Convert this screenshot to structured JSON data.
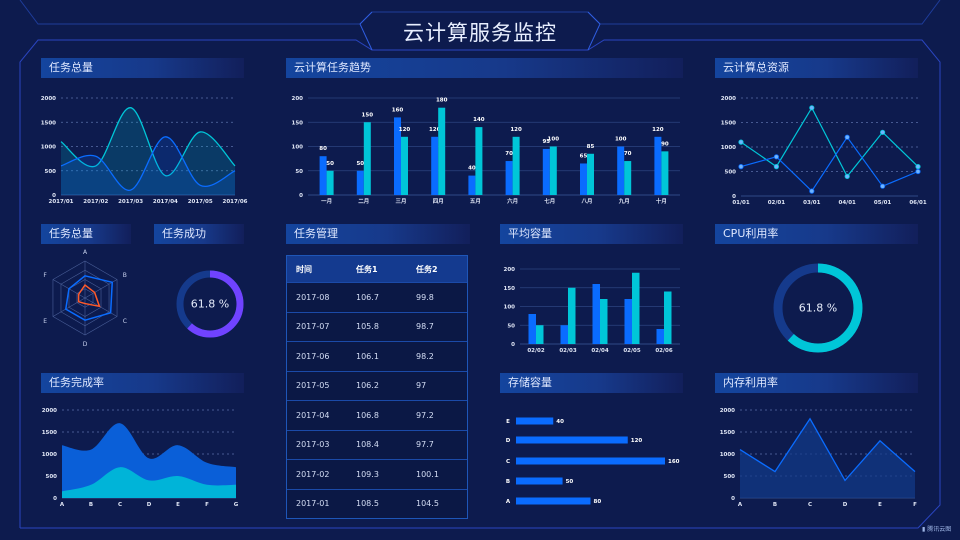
{
  "header": {
    "title": "云计算服务监控"
  },
  "watermark": "腾讯云图",
  "colors": {
    "background": "#0d1b4e",
    "blue": "#0a6cff",
    "cyan": "#00c6d8",
    "purple": "#7043ff",
    "orange": "#ff5a2a",
    "title_bar": "#14459e"
  },
  "table": {
    "title": "任务管理",
    "columns": [
      "时间",
      "任务1",
      "任务2"
    ],
    "rows": [
      [
        "2017-08",
        "106.7",
        "99.8"
      ],
      [
        "2017-07",
        "105.8",
        "98.7"
      ],
      [
        "2017-06",
        "106.1",
        "98.2"
      ],
      [
        "2017-05",
        "106.2",
        "97"
      ],
      [
        "2017-04",
        "106.8",
        "97.2"
      ],
      [
        "2017-03",
        "108.4",
        "97.7"
      ],
      [
        "2017-02",
        "109.3",
        "100.1"
      ],
      [
        "2017-01",
        "108.5",
        "104.5"
      ]
    ]
  },
  "chart_data": [
    {
      "title": "任务总量",
      "type": "area",
      "smooth": true,
      "categories": [
        "2017/01",
        "2017/02",
        "2017/03",
        "2017/04",
        "2017/05",
        "2017/06"
      ],
      "series": [
        {
          "values": [
            1100,
            600,
            1800,
            400,
            1300,
            600
          ],
          "color": "#00c6d8"
        },
        {
          "values": [
            600,
            800,
            100,
            1200,
            200,
            500
          ],
          "color": "#0a6cff"
        }
      ],
      "ylim": [
        0,
        2000
      ],
      "yticks": [
        0,
        500,
        1000,
        1500,
        2000
      ],
      "grid": true
    },
    {
      "title": "云计算任务趋势",
      "type": "bar",
      "categories": [
        "一月",
        "二月",
        "三月",
        "四月",
        "五月",
        "六月",
        "七月",
        "八月",
        "九月",
        "十月"
      ],
      "series": [
        {
          "values": [
            80,
            50,
            160,
            120,
            40,
            70,
            95,
            65,
            100,
            120
          ],
          "color": "#0a6cff"
        },
        {
          "values": [
            50,
            150,
            120,
            180,
            140,
            120,
            100,
            85,
            70,
            90
          ],
          "color": "#00c6d8"
        }
      ],
      "ylim": [
        0,
        200
      ],
      "yticks": [
        0,
        50,
        100,
        150,
        200
      ],
      "data_labels": true,
      "grid": true
    },
    {
      "title": "云计算总资源",
      "type": "line",
      "categories": [
        "01/01",
        "02/01",
        "03/01",
        "04/01",
        "05/01",
        "06/01"
      ],
      "series": [
        {
          "values": [
            1100,
            600,
            1800,
            400,
            1300,
            600
          ],
          "color": "#00c6d8"
        },
        {
          "values": [
            600,
            800,
            100,
            1200,
            200,
            500
          ],
          "color": "#0a6cff"
        }
      ],
      "ylim": [
        0,
        2000
      ],
      "yticks": [
        0,
        500,
        1000,
        1500,
        2000
      ],
      "grid": true
    },
    {
      "title": "任务总量",
      "type": "radar",
      "indicators": [
        "A",
        "B",
        "C",
        "D",
        "E",
        "F"
      ],
      "max": 100,
      "series": [
        {
          "values": [
            60,
            85,
            80,
            60,
            60,
            50
          ],
          "color": "#0a6cff"
        },
        {
          "values": [
            35,
            30,
            45,
            15,
            20,
            20
          ],
          "color": "#ff5a2a"
        }
      ]
    },
    {
      "title": "任务成功",
      "type": "gauge",
      "value": 61.8,
      "label": "61.8 %",
      "color": "#7043ff"
    },
    {
      "title": "平均容量",
      "type": "bar",
      "categories": [
        "02/02",
        "02/03",
        "02/04",
        "02/05",
        "02/06"
      ],
      "series": [
        {
          "values": [
            80,
            50,
            160,
            120,
            40
          ],
          "color": "#0a6cff"
        },
        {
          "values": [
            50,
            150,
            120,
            190,
            140
          ],
          "color": "#00c6d8"
        }
      ],
      "ylim": [
        0,
        200
      ],
      "yticks": [
        0,
        50,
        100,
        150,
        200
      ],
      "grid": true
    },
    {
      "title": "CPU利用率",
      "type": "gauge",
      "value": 61.8,
      "label": "61.8 %",
      "color": "#00c6d8"
    },
    {
      "title": "任务完成率",
      "type": "area",
      "stacked": true,
      "smooth": true,
      "categories": [
        "A",
        "B",
        "C",
        "D",
        "E",
        "F",
        "G"
      ],
      "series": [
        {
          "values": [
            150,
            300,
            700,
            400,
            500,
            300,
            300
          ],
          "color": "#00b4d8"
        },
        {
          "values": [
            1050,
            800,
            1000,
            500,
            700,
            500,
            400
          ],
          "color": "#0a5fd8"
        }
      ],
      "ylim": [
        0,
        2000
      ],
      "yticks": [
        0,
        500,
        1000,
        1500,
        2000
      ],
      "grid": true
    },
    {
      "title": "存储容量",
      "type": "bar",
      "orientation": "horizontal",
      "categories": [
        "A",
        "B",
        "C",
        "D",
        "E"
      ],
      "values": [
        80,
        50,
        160,
        120,
        40
      ],
      "color": "#0a6cff",
      "data_labels": true
    },
    {
      "title": "内存利用率",
      "type": "area",
      "categories": [
        "A",
        "B",
        "C",
        "D",
        "E",
        "F"
      ],
      "series": [
        {
          "values": [
            1100,
            600,
            1800,
            400,
            1300,
            600
          ],
          "color": "#0a6cff"
        }
      ],
      "ylim": [
        0,
        2000
      ],
      "yticks": [
        0,
        500,
        1000,
        1500,
        2000
      ],
      "grid": true
    }
  ]
}
